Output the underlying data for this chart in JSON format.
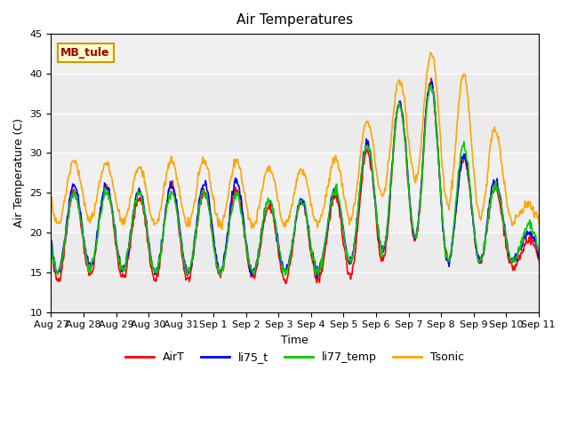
{
  "title": "Air Temperatures",
  "xlabel": "Time",
  "ylabel": "Air Temperature (C)",
  "ylim": [
    10,
    45
  ],
  "xlim_days": [
    0,
    15
  ],
  "background_color": "#ffffff",
  "plot_bg_color": "#f0f0f0",
  "grid_color": "#ffffff",
  "annotation_text": "MB_tule",
  "annotation_bg": "#ffffcc",
  "annotation_border": "#cc9900",
  "annotation_text_color": "#990000",
  "xtick_labels": [
    "Aug 27",
    "Aug 28",
    "Aug 29",
    "Aug 30",
    "Aug 31",
    "Sep 1",
    "Sep 2",
    "Sep 3",
    "Sep 4",
    "Sep 5",
    "Sep 6",
    "Sep 7",
    "Sep 8",
    "Sep 9",
    "Sep 10",
    "Sep 11"
  ],
  "colors": {
    "AirT": "#ff0000",
    "li75_t": "#0000ff",
    "li77_temp": "#00cc00",
    "Tsonic": "#ffa500"
  },
  "legend_labels": [
    "AirT",
    "li75_t",
    "li77_temp",
    "Tsonic"
  ],
  "series_params": {
    "AirT": {
      "min_base": [
        14,
        15,
        14,
        14,
        14,
        15,
        14,
        14,
        14,
        15,
        17,
        20,
        15,
        17,
        15,
        15
      ],
      "max_base": [
        25,
        26,
        24,
        26,
        25,
        26,
        23,
        24,
        23,
        29,
        35,
        41,
        30,
        27,
        19,
        20
      ]
    },
    "li75_t": {
      "min_base": [
        15,
        16,
        15,
        15,
        15,
        15,
        15,
        15,
        15,
        17,
        18,
        20,
        15,
        17,
        16,
        16
      ],
      "max_base": [
        26,
        26,
        25,
        26,
        26,
        27,
        24,
        24,
        24,
        30,
        35,
        41,
        30,
        28,
        20,
        20
      ]
    },
    "li77_temp": {
      "min_base": [
        15,
        16,
        15,
        15,
        15,
        15,
        15,
        15,
        15,
        17,
        18,
        20,
        15,
        17,
        16,
        16
      ],
      "max_base": [
        25,
        25,
        25,
        25,
        25,
        25,
        24,
        24,
        24,
        30,
        35,
        40,
        32,
        27,
        21,
        21
      ]
    },
    "Tsonic": {
      "min_base": [
        21,
        22,
        21,
        21,
        21,
        21,
        21,
        21,
        21,
        22,
        26,
        27,
        22,
        22,
        21,
        21
      ],
      "max_base": [
        29,
        29,
        28,
        29,
        29,
        29,
        28,
        28,
        28,
        33,
        38,
        43,
        41,
        35,
        24,
        22
      ]
    }
  }
}
